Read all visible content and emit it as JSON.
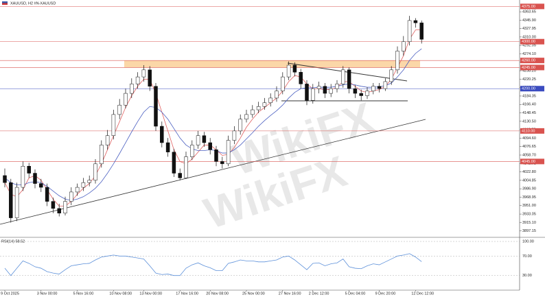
{
  "chart_data": {
    "type": "candlestick",
    "title": "XAUUSD, H2  #N-XAUUSD",
    "annotations": [
      "WikiFX",
      "WikiFX"
    ],
    "categories": [
      "9 Oct 2025",
      null,
      null,
      null,
      null,
      null,
      "3 Nov 00:00",
      null,
      null,
      null,
      null,
      null,
      "5 Nov 16:00",
      null,
      null,
      null,
      null,
      null,
      "10 Nov 08:00",
      null,
      null,
      null,
      null,
      "13 Nov 00:00",
      null,
      null,
      null,
      null,
      null,
      "17 Nov 16:00",
      null,
      null,
      null,
      null,
      "20 Nov 08:00",
      null,
      null,
      null,
      null,
      null,
      "25 Nov 00:00",
      null,
      null,
      null,
      null,
      null,
      "27 Nov 16:00",
      null,
      null,
      null,
      null,
      "2 Dec 12:00",
      null,
      null,
      null,
      null,
      null,
      "5 Dec 04:00",
      null,
      null,
      null,
      null,
      "9 Dec 20:00",
      null,
      null,
      null,
      null,
      null,
      "12 Dec 12:00",
      null
    ],
    "open": [
      4015,
      4000,
      3925,
      3990,
      4035,
      4020,
      3998,
      3990,
      3960,
      3945,
      3935,
      3960,
      3980,
      3990,
      4000,
      4005,
      4040,
      4080,
      4100,
      4145,
      4165,
      4190,
      4210,
      4225,
      4240,
      4205,
      4120,
      4085,
      4065,
      4020,
      4010,
      4055,
      4080,
      4100,
      4085,
      4070,
      4045,
      4040,
      4090,
      4110,
      4135,
      4145,
      4155,
      4162,
      4170,
      4180,
      4195,
      4225,
      4250,
      4235,
      4210,
      4175,
      4200,
      4205,
      4190,
      4200,
      4210,
      4240,
      4200,
      4190,
      4185,
      4195,
      4205,
      4200,
      4215,
      4240,
      4280,
      4300,
      4345,
      4340
    ],
    "high": [
      4030,
      4008,
      4000,
      4045,
      4042,
      4028,
      4008,
      3998,
      3968,
      3955,
      3970,
      3990,
      3998,
      4010,
      4015,
      4050,
      4090,
      4112,
      4155,
      4178,
      4200,
      4222,
      4235,
      4250,
      4248,
      4212,
      4130,
      4095,
      4072,
      4030,
      4066,
      4090,
      4110,
      4108,
      4095,
      4078,
      4055,
      4100,
      4120,
      4145,
      4155,
      4165,
      4172,
      4180,
      4190,
      4205,
      4235,
      4258,
      4256,
      4242,
      4218,
      4210,
      4215,
      4212,
      4210,
      4218,
      4248,
      4245,
      4208,
      4198,
      4203,
      4212,
      4212,
      4222,
      4248,
      4290,
      4312,
      4355,
      4350,
      4345
    ],
    "low": [
      3990,
      3915,
      3918,
      3982,
      4010,
      3988,
      3980,
      3950,
      3935,
      3928,
      3930,
      3952,
      3972,
      3982,
      3992,
      3998,
      4032,
      4070,
      4092,
      4135,
      4158,
      4180,
      4200,
      4215,
      4195,
      4110,
      4075,
      4055,
      4012,
      4005,
      4008,
      4048,
      4072,
      4076,
      4060,
      4035,
      4030,
      4035,
      4082,
      4102,
      4128,
      4138,
      4148,
      4155,
      4162,
      4172,
      4188,
      4218,
      4226,
      4200,
      4165,
      4168,
      4190,
      4180,
      4182,
      4192,
      4202,
      4190,
      4180,
      4175,
      4178,
      4188,
      4192,
      4195,
      4208,
      4232,
      4270,
      4292,
      4330,
      4296
    ],
    "close": [
      4000,
      3925,
      3990,
      4035,
      4020,
      3998,
      3990,
      3960,
      3945,
      3935,
      3960,
      3980,
      3990,
      4000,
      4005,
      4040,
      4080,
      4100,
      4145,
      4165,
      4190,
      4210,
      4225,
      4240,
      4205,
      4120,
      4085,
      4065,
      4020,
      4010,
      4055,
      4080,
      4100,
      4085,
      4070,
      4045,
      4040,
      4090,
      4110,
      4135,
      4145,
      4155,
      4162,
      4170,
      4180,
      4195,
      4225,
      4250,
      4235,
      4210,
      4175,
      4200,
      4205,
      4190,
      4200,
      4210,
      4240,
      4200,
      4190,
      4185,
      4195,
      4205,
      4200,
      4215,
      4240,
      4280,
      4300,
      4345,
      4340,
      4305
    ],
    "up_color": "#ffffff",
    "down_color": "#111111",
    "moving_averages": [
      {
        "color": "#e06060",
        "values": [
          4000,
          3975,
          3970,
          3985,
          4010,
          4015,
          4005,
          3985,
          3965,
          3950,
          3950,
          3960,
          3975,
          3988,
          3998,
          4015,
          4040,
          4070,
          4100,
          4130,
          4160,
          4185,
          4205,
          4220,
          4220,
          4190,
          4150,
          4110,
          4070,
          4045,
          4040,
          4050,
          4065,
          4080,
          4080,
          4070,
          4058,
          4060,
          4075,
          4095,
          4118,
          4135,
          4150,
          4160,
          4170,
          4180,
          4195,
          4215,
          4228,
          4225,
          4210,
          4200,
          4200,
          4198,
          4198,
          4203,
          4215,
          4215,
          4205,
          4195,
          4192,
          4195,
          4198,
          4205,
          4220,
          4245,
          4270,
          4305,
          4325,
          4325
        ]
      },
      {
        "color": "#4a5fc1",
        "values": [
          4010,
          4000,
          3995,
          3995,
          4000,
          4002,
          4000,
          3992,
          3982,
          3972,
          3965,
          3962,
          3965,
          3970,
          3978,
          3988,
          4002,
          4020,
          4040,
          4062,
          4085,
          4108,
          4130,
          4150,
          4162,
          4160,
          4150,
          4135,
          4115,
          4095,
          4080,
          4072,
          4068,
          4068,
          4070,
          4068,
          4063,
          4063,
          4070,
          4080,
          4093,
          4106,
          4120,
          4132,
          4143,
          4153,
          4165,
          4180,
          4192,
          4200,
          4202,
          4202,
          4203,
          4203,
          4203,
          4205,
          4208,
          4210,
          4208,
          4205,
          4203,
          4203,
          4204,
          4206,
          4212,
          4225,
          4240,
          4260,
          4275,
          4285
        ]
      }
    ],
    "ylim": [
      3885,
      4377
    ],
    "yticks": [
      4363.65,
      {
        "value": 4345.9,
        "label": "4345.90"
      },
      {
        "value": 4327.95,
        "label": "4327.95"
      },
      {
        "value": 4310,
        "label": "4310.00"
      },
      {
        "value": 4292.05,
        "label": "4292.05"
      },
      {
        "value": 4274.1,
        "label": "4274.10"
      },
      {
        "value": 4256.15,
        "label": "4256.15"
      },
      {
        "value": 4238.2,
        "label": "4238.20"
      },
      {
        "value": 4220.25,
        "label": "4220.25"
      },
      {
        "value": 4202.3,
        "label": "4202.30"
      },
      {
        "value": 4184.35,
        "label": "4184.35"
      },
      {
        "value": 4166.4,
        "label": "4166.40"
      },
      {
        "value": 4148.45,
        "label": "4148.45"
      },
      {
        "value": 4130.5,
        "label": "4130.50"
      },
      {
        "value": 4112.55,
        "label": "4112.55"
      },
      {
        "value": 4094.6,
        "label": "4094.60"
      },
      {
        "value": 4076.65,
        "label": "4076.65"
      },
      {
        "value": 4058.7,
        "label": "4058.70"
      },
      {
        "value": 4040.75,
        "label": "4040.75"
      },
      {
        "value": 4022.8,
        "label": "4022.80"
      },
      {
        "value": 4004.85,
        "label": "4004.85"
      },
      {
        "value": 3986.9,
        "label": "3986.90"
      },
      {
        "value": 3968.95,
        "label": "3968.95"
      },
      {
        "value": 3951,
        "label": "3951.00"
      },
      {
        "value": 3933.05,
        "label": "3933.05"
      },
      {
        "value": 3915.1,
        "label": "3915.10"
      },
      {
        "value": 3897.15,
        "label": "3897.15"
      }
    ],
    "levels": {
      "values": [
        4375,
        4300,
        4260,
        4245,
        4200,
        4110,
        4045
      ],
      "value_labels": [
        "4375.00",
        "4300.00",
        "4260.00",
        "4245.00",
        "4200.00",
        "4110.00",
        "4045.00"
      ],
      "colors": [
        "#d9534f",
        "#d9534f",
        "#d9534f",
        "#d9534f",
        "#3b4cc0",
        "#d9534f",
        "#d9534f"
      ]
    },
    "zone": {
      "values": [
        4245,
        4260
      ],
      "color": "#fbd7a8"
    },
    "indicator": {
      "title": "RSI(14) 58.52",
      "color": "#5b8fd9",
      "values": [
        45,
        30,
        45,
        60,
        55,
        48,
        45,
        38,
        35,
        33,
        42,
        50,
        52,
        54,
        55,
        62,
        68,
        70,
        72,
        70,
        70,
        68,
        66,
        64,
        50,
        35,
        32,
        33,
        30,
        30,
        45,
        52,
        56,
        50,
        46,
        40,
        40,
        55,
        58,
        62,
        60,
        60,
        58,
        58,
        60,
        62,
        68,
        70,
        62,
        52,
        42,
        55,
        56,
        50,
        54,
        56,
        64,
        48,
        45,
        44,
        50,
        54,
        52,
        58,
        64,
        70,
        72,
        75,
        68,
        58.52
      ],
      "ylim": [
        0,
        100
      ],
      "yticks": [
        {
          "value": 100,
          "label": "100.00"
        },
        {
          "value": 70,
          "label": "70.00"
        },
        {
          "value": 30,
          "label": "30.00"
        }
      ]
    }
  }
}
